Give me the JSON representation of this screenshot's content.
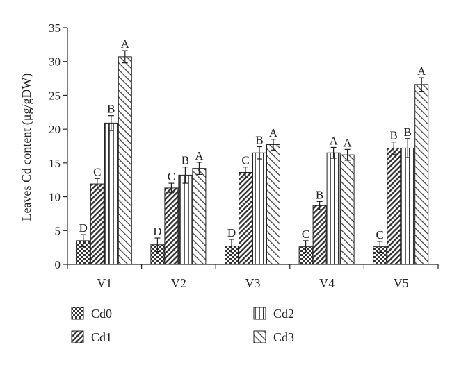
{
  "chart_data": {
    "type": "bar",
    "title": "",
    "xlabel": "",
    "ylabel": "Leaves Cd content (μg/gDW)",
    "ylim": [
      0,
      35
    ],
    "yticks": [
      0,
      5,
      10,
      15,
      20,
      25,
      30,
      35
    ],
    "categories": [
      "V1",
      "V2",
      "V3",
      "V4",
      "V5"
    ],
    "legend_position": "bottom",
    "series": [
      {
        "name": "Cd0",
        "pattern": "checker",
        "values": [
          3.5,
          2.9,
          2.7,
          2.6,
          2.6
        ],
        "errors": [
          0.9,
          1.0,
          1.0,
          0.9,
          0.8
        ],
        "labels": [
          "D",
          "D",
          "D",
          "C",
          "C"
        ]
      },
      {
        "name": "Cd1",
        "pattern": "diagonal-dense",
        "values": [
          11.9,
          11.3,
          13.6,
          8.7,
          17.2
        ],
        "errors": [
          0.8,
          0.7,
          0.8,
          0.6,
          0.9
        ],
        "labels": [
          "C",
          "C",
          "C",
          "B",
          "B"
        ]
      },
      {
        "name": "Cd2",
        "pattern": "vertical",
        "values": [
          20.9,
          13.2,
          16.5,
          16.5,
          17.2
        ],
        "errors": [
          1.1,
          1.2,
          0.9,
          0.8,
          1.4
        ],
        "labels": [
          "B",
          "B",
          "B",
          "A",
          "B"
        ]
      },
      {
        "name": "Cd3",
        "pattern": "diagonal-light",
        "values": [
          30.7,
          14.2,
          17.7,
          16.2,
          26.6
        ],
        "errors": [
          0.9,
          0.9,
          0.8,
          0.8,
          1.0
        ],
        "labels": [
          "A",
          "A",
          "A",
          "A",
          "A"
        ]
      }
    ]
  }
}
